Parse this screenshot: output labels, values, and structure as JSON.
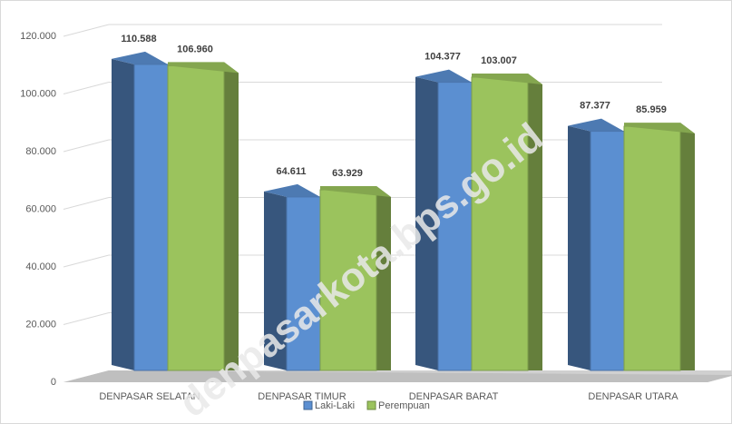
{
  "chart_data": {
    "type": "bar3d",
    "categories": [
      "DENPASAR SELATAN",
      "DENPASAR TIMUR",
      "DENPASAR BARAT",
      "DENPASAR UTARA"
    ],
    "series": [
      {
        "name": "Laki-Laki",
        "color": "#5b8fd1",
        "values": [
          110588,
          64611,
          104377,
          87377
        ],
        "value_labels": [
          "110.588",
          "64.611",
          "104.377",
          "87.377"
        ]
      },
      {
        "name": "Perempuan",
        "color": "#9bc35d",
        "values": [
          106960,
          63929,
          103007,
          85959
        ],
        "value_labels": [
          "106.960",
          "63.929",
          "103.007",
          "85.959"
        ]
      }
    ],
    "ylim": [
      0,
      120000
    ],
    "yticks": [
      0,
      {
        "value": 20000,
        "label": "20.000"
      },
      {
        "value": 40000,
        "label": "40.000"
      },
      {
        "value": 60000,
        "label": "60.000"
      },
      {
        "value": 80000,
        "label": "80.000"
      },
      {
        "value": 100000,
        "label": "100.000"
      },
      {
        "value": 120000,
        "label": "120.000"
      }
    ],
    "grid": true,
    "legend": "bottom",
    "watermark": "denpasarkota.bps.go.id"
  }
}
